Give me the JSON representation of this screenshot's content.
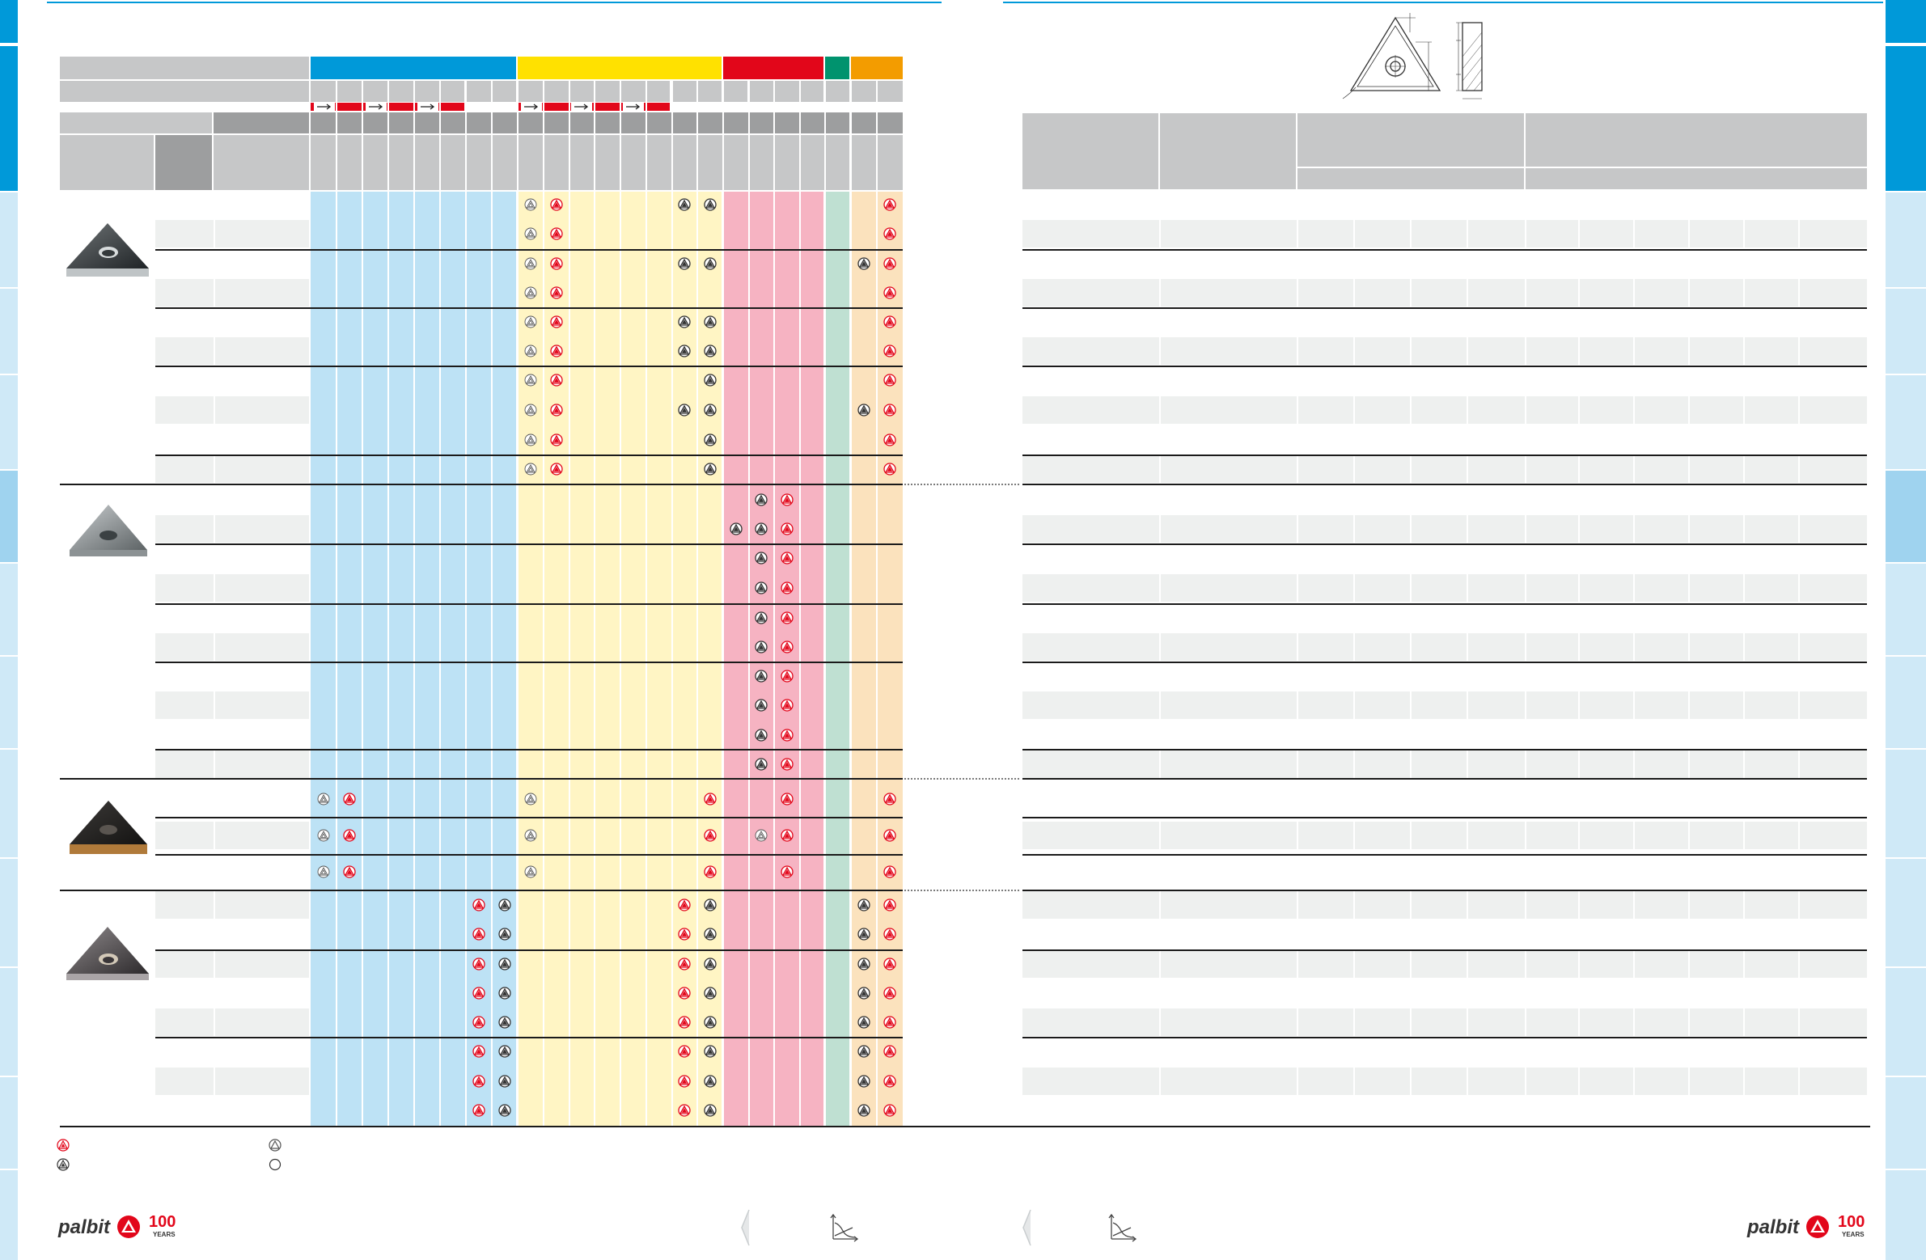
{
  "brand": {
    "name": "palbit",
    "anniversary": "100",
    "anniversary_word": "YEARS",
    "colors": {
      "blue": "#0099d9",
      "light_blue_tab": "#cfe9f7",
      "yellow": "#ffe100",
      "red": "#e2061a",
      "green": "#00936e",
      "orange": "#f39c00",
      "col_blue": "#bde2f5",
      "col_yellow": "#fff5c4",
      "col_pink": "#f6b3c2",
      "col_green": "#bfe0d2",
      "col_orange": "#fbe2bd",
      "header_gray": "#c6c7c8",
      "subheader_gray": "#9d9e9f"
    }
  },
  "icons": {
    "red": "red-triangle-grade-icon",
    "dark": "dark-triangle-grade-icon",
    "outline_dark": "outline-triangle-grade-icon",
    "circle": "empty-circle-icon",
    "arrow": "right-arrow-icon",
    "page_prev": "chevron-left-icon",
    "graph": "chart-axes-icon"
  },
  "legend": [
    {
      "icon": "red-triangle-grade-icon",
      "text": ""
    },
    {
      "icon": "dark-triangle-grade-icon",
      "text": ""
    },
    {
      "icon": "outline-triangle-grade-icon",
      "text": ""
    },
    {
      "icon": "empty-circle-icon",
      "text": ""
    }
  ],
  "groups": [
    {
      "name": "group-1",
      "rows": 10
    },
    {
      "name": "group-2",
      "rows": 10
    },
    {
      "name": "group-3",
      "rows": 3
    },
    {
      "name": "group-4",
      "rows": 8
    }
  ]
}
